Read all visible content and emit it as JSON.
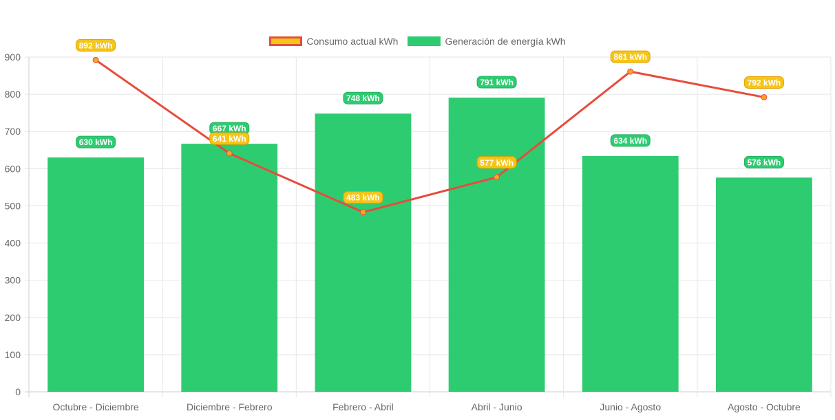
{
  "chart_data": {
    "type": "bar",
    "categories": [
      "Octubre - Diciembre",
      "Diciembre - Febrero",
      "Febrero - Abril",
      "Abril - Junio",
      "Junio - Agosto",
      "Agosto - Octubre"
    ],
    "series": [
      {
        "name": "Consumo actual kWh",
        "type": "line",
        "values": [
          892,
          641,
          483,
          577,
          861,
          792
        ],
        "color": "#e74c3c",
        "point_color": "#f5a623",
        "label_bg": "#f5c518",
        "label_border": "#e8a000"
      },
      {
        "name": "Generación de energía kWh",
        "type": "bar",
        "values": [
          630,
          667,
          748,
          791,
          634,
          576
        ],
        "color": "#2ecc71",
        "label_bg": "#2ecc71",
        "label_border": "#27ae60"
      }
    ],
    "value_suffix": " kWh",
    "ylim": [
      0,
      900
    ],
    "yticks": [
      0,
      100,
      200,
      300,
      400,
      500,
      600,
      700,
      800,
      900
    ],
    "grid": true,
    "legend_position": "top"
  }
}
